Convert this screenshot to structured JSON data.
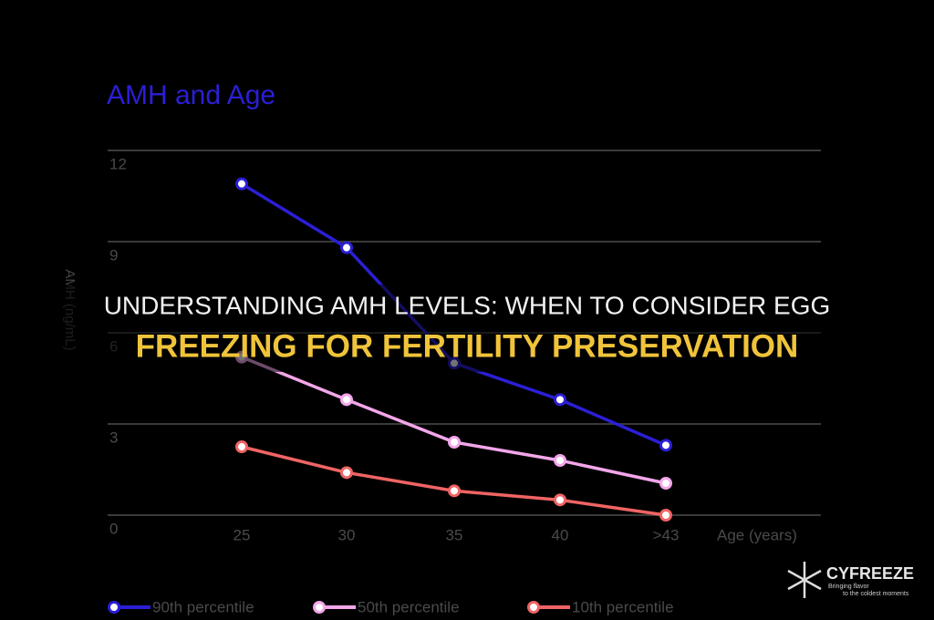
{
  "chart_data": {
    "type": "line",
    "title": "AMH and Age",
    "x_label": "Age (years)",
    "y_label": "AMH (ng/mL)",
    "categories": [
      "25",
      "30",
      "35",
      "40",
      ">43"
    ],
    "series": [
      {
        "name": "90th percentile",
        "color": "#2b1fd6",
        "values": [
          10.9,
          8.8,
          5.0,
          3.8,
          2.3
        ]
      },
      {
        "name": "50th percentile",
        "color": "#f3a6ea",
        "values": [
          5.2,
          3.8,
          2.4,
          1.8,
          1.05
        ]
      },
      {
        "name": "10th percentile",
        "color": "#f06464",
        "values": [
          2.25,
          1.4,
          0.8,
          0.5,
          0
        ]
      }
    ],
    "ylim": [
      0,
      12
    ],
    "yticks": [
      0,
      3,
      6,
      9,
      12
    ],
    "grid": true,
    "legend": "bottom"
  },
  "banner": {
    "line1": "UNDERSTANDING AMH LEVELS: WHEN TO CONSIDER EGG",
    "line2": "FREEZING FOR FERTILITY PRESERVATION"
  },
  "logo": {
    "name": "CYFREEZE",
    "tagline1": "Bringing flavor",
    "tagline2": "to the coldest moments"
  }
}
